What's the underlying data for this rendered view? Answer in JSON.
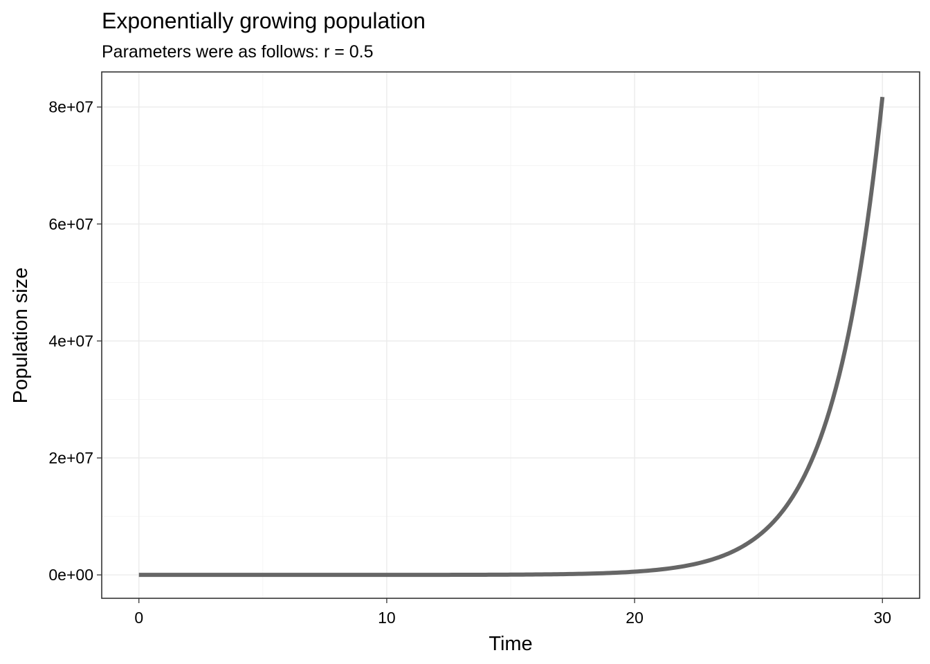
{
  "chart_data": {
    "type": "line",
    "title": "Exponentially growing population",
    "subtitle": "Parameters were as follows: r = 0.5",
    "xlabel": "Time",
    "ylabel": "Population size",
    "xlim": [
      -1.5,
      31.5
    ],
    "ylim": [
      -4000000,
      86000000
    ],
    "x_ticks": [
      0,
      10,
      20,
      30
    ],
    "x_tick_labels": [
      "0",
      "10",
      "20",
      "30"
    ],
    "x_minor_ticks": [
      5,
      15,
      25
    ],
    "y_ticks": [
      0,
      20000000,
      40000000,
      60000000,
      80000000
    ],
    "y_tick_labels": [
      "0e+00",
      "2e+07",
      "4e+07",
      "6e+07",
      "8e+07"
    ],
    "y_minor_ticks": [
      10000000,
      30000000,
      50000000,
      70000000
    ],
    "grid": true,
    "legend": "none",
    "series": [
      {
        "color": "#666666",
        "model": "exponential",
        "initial_size": 25,
        "r": 0.5,
        "x": [
          0,
          2,
          4,
          6,
          8,
          10,
          12,
          14,
          15,
          16,
          17,
          18,
          19,
          20,
          21,
          22,
          23,
          24,
          25,
          26,
          27,
          28,
          29,
          30
        ],
        "y": [
          25,
          68,
          185,
          503,
          1365,
          3710,
          10086,
          27416,
          45201,
          74524,
          122868,
          202573,
          333986,
          550652,
          907872,
          1496822,
          2467848,
          4068779,
          6708274,
          11060165,
          18235113,
          30064875,
          49568255,
          81723177
        ]
      }
    ]
  }
}
